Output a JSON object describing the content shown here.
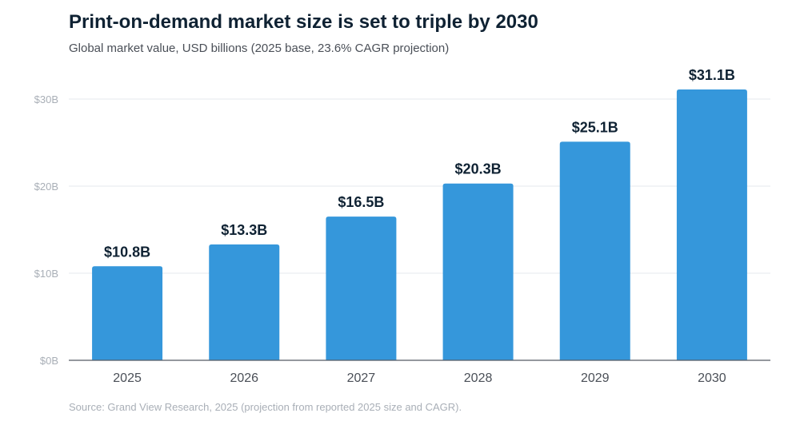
{
  "header": {
    "title": "Print-on-demand market size is set to triple by 2030",
    "subtitle": "Global market value, USD billions (2025 base, 23.6% CAGR projection)"
  },
  "footer": {
    "source": "Source: Grand View Research, 2025 (projection from reported 2025 size and CAGR)."
  },
  "colors": {
    "bar": "#3597db",
    "grid": "#e6e9ed",
    "axis": "#555b63",
    "tick_label": "#a9afb7",
    "category_label": "#4a4f57",
    "value_label": "#0f2233"
  },
  "chart_data": {
    "type": "bar",
    "title": "Print-on-demand market size is set to triple by 2030",
    "subtitle": "Global market value, USD billions (2025 base, 23.6% CAGR projection)",
    "xlabel": "",
    "ylabel": "",
    "categories": [
      "2025",
      "2026",
      "2027",
      "2028",
      "2029",
      "2030"
    ],
    "values": [
      10.8,
      13.3,
      16.5,
      20.3,
      25.1,
      31.1
    ],
    "value_labels": [
      "$10.8B",
      "$13.3B",
      "$16.5B",
      "$20.3B",
      "$25.1B",
      "$31.1B"
    ],
    "yticks": [
      0,
      10,
      20,
      30
    ],
    "ytick_labels": [
      "$0B",
      "$10B",
      "$20B",
      "$30B"
    ],
    "ylim": [
      0,
      30
    ],
    "grid": "horizontal",
    "legend": "none"
  }
}
